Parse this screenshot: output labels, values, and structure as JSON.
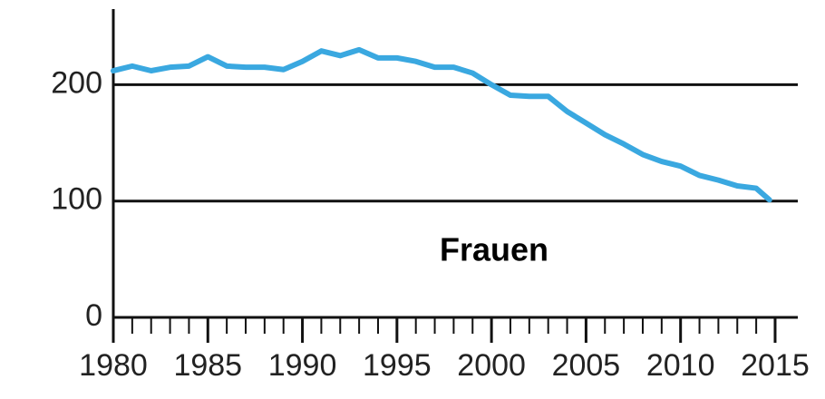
{
  "chart_data": {
    "type": "line",
    "annotation": "Frauen",
    "x": [
      1980,
      1981,
      1982,
      1983,
      1984,
      1985,
      1986,
      1987,
      1988,
      1989,
      1990,
      1991,
      1992,
      1993,
      1994,
      1995,
      1996,
      1997,
      1998,
      1999,
      2000,
      2001,
      2002,
      2003,
      2004,
      2005,
      2006,
      2007,
      2008,
      2009,
      2010,
      2011,
      2012,
      2013,
      2014,
      2014.7
    ],
    "series": [
      {
        "name": "Frauen",
        "color": "#3aa8e0",
        "values": [
          212,
          216,
          212,
          215,
          216,
          224,
          216,
          215,
          215,
          213,
          220,
          229,
          225,
          230,
          223,
          223,
          220,
          215,
          215,
          210,
          200,
          191,
          190,
          190,
          177,
          167,
          157,
          149,
          140,
          134,
          130,
          122,
          118,
          113,
          111,
          101
        ]
      }
    ],
    "xlim": [
      1980,
      2016.2
    ],
    "xticks": [
      1980,
      1985,
      1990,
      1995,
      2000,
      2005,
      2010,
      2015
    ],
    "xminorticks": [
      1981,
      1982,
      1983,
      1984,
      1986,
      1987,
      1988,
      1989,
      1991,
      1992,
      1993,
      1994,
      1996,
      1997,
      1998,
      1999,
      2001,
      2002,
      2003,
      2004,
      2006,
      2007,
      2008,
      2009,
      2011,
      2012,
      2013,
      2014
    ],
    "ylim": [
      0,
      265
    ],
    "yticks": [
      0,
      100,
      200
    ],
    "grid": true
  }
}
